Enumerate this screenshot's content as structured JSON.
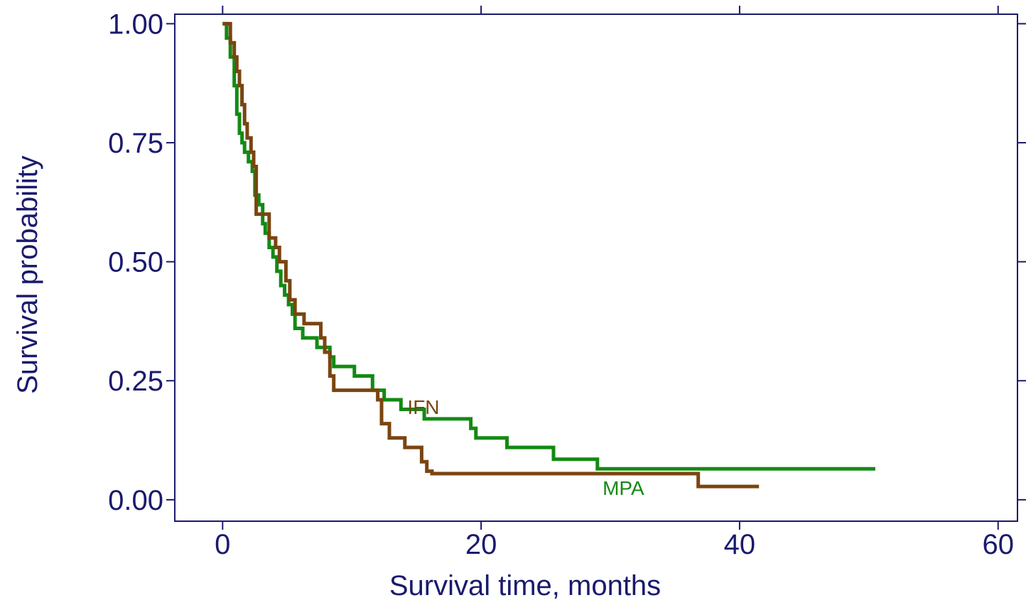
{
  "chart_data": {
    "type": "line",
    "step": "post",
    "title": "",
    "xlabel": "Survival time, months",
    "ylabel": "Survival probability",
    "xlim": [
      -3.7,
      61.5
    ],
    "ylim": [
      -0.045,
      1.02
    ],
    "x_ticks": [
      0,
      20,
      40,
      60
    ],
    "x_tick_labels": [
      "0",
      "20",
      "40",
      "60"
    ],
    "y_ticks": [
      0,
      0.25,
      0.5,
      0.75,
      1
    ],
    "y_tick_labels": [
      "0.00",
      "0.25",
      "0.50",
      "0.75",
      "1.00"
    ],
    "grid": false,
    "legend": "none",
    "colors": {
      "axis": "#1a1a6e",
      "text": "#1a1a6e"
    },
    "series": [
      {
        "name": "MPA",
        "color": "#138a13",
        "label_pos": {
          "x": 29.4,
          "y": 0.01
        },
        "x": [
          0,
          0.3,
          0.6,
          0.9,
          1.1,
          1.3,
          1.5,
          1.7,
          2.0,
          2.3,
          2.5,
          2.8,
          3.1,
          3.3,
          3.6,
          3.9,
          4.2,
          4.5,
          4.8,
          5.1,
          5.4,
          5.6,
          6.2,
          7.3,
          8.3,
          8.6,
          10.2,
          11.6,
          12.5,
          13.8,
          15.6,
          19.2,
          19.6,
          22.0,
          25.6,
          29.0,
          50.5
        ],
        "y": [
          1.0,
          0.97,
          0.93,
          0.87,
          0.81,
          0.77,
          0.75,
          0.73,
          0.71,
          0.69,
          0.64,
          0.62,
          0.58,
          0.56,
          0.53,
          0.51,
          0.48,
          0.45,
          0.43,
          0.41,
          0.39,
          0.36,
          0.34,
          0.32,
          0.3,
          0.28,
          0.26,
          0.23,
          0.21,
          0.19,
          0.17,
          0.15,
          0.13,
          0.11,
          0.085,
          0.065,
          0.065
        ]
      },
      {
        "name": "IFN",
        "color": "#7a4510",
        "label_pos": {
          "x": 14.3,
          "y": 0.18
        },
        "x": [
          0,
          0.6,
          0.9,
          1.1,
          1.3,
          1.5,
          1.7,
          1.9,
          2.2,
          2.4,
          2.6,
          3.6,
          4.1,
          4.4,
          4.9,
          5.2,
          5.6,
          6.3,
          7.6,
          7.9,
          8.3,
          8.6,
          12.0,
          12.3,
          12.9,
          14.1,
          15.4,
          15.8,
          16.2,
          36.8,
          41.5
        ],
        "y": [
          1.0,
          0.96,
          0.93,
          0.9,
          0.87,
          0.83,
          0.79,
          0.76,
          0.73,
          0.7,
          0.6,
          0.55,
          0.53,
          0.5,
          0.46,
          0.42,
          0.39,
          0.37,
          0.34,
          0.31,
          0.26,
          0.23,
          0.21,
          0.16,
          0.13,
          0.11,
          0.08,
          0.06,
          0.055,
          0.028,
          0.028
        ]
      }
    ]
  }
}
